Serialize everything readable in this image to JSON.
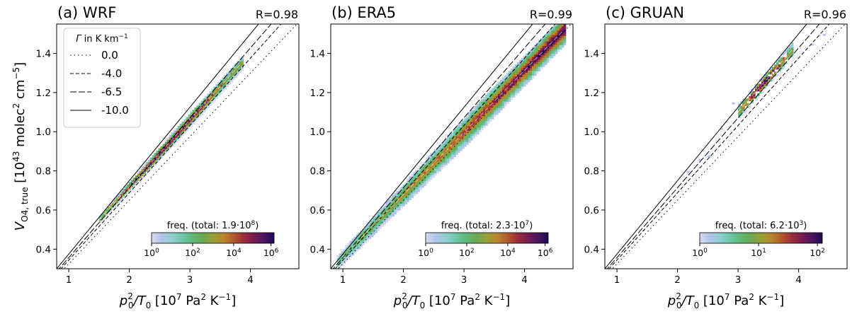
{
  "figure": {
    "ylabel_main": "V",
    "ylabel_sub": "O4, true",
    "ylabel_unit": "[10",
    "ylabel_unit_exp": "43",
    "ylabel_unit_rest": " molec",
    "ylabel_unit_exp2": "2",
    "ylabel_unit_rest2": " cm",
    "ylabel_unit_exp3": "−5",
    "ylabel_unit_end": "]",
    "xlabel_p": "p",
    "xlabel_p_sub": "0",
    "xlabel_p_sup": "2",
    "xlabel_slash": "/T",
    "xlabel_t_sub": "0",
    "xlabel_unit": " [10",
    "xlabel_unit_exp": "7",
    "xlabel_unit_rest": " Pa",
    "xlabel_unit_exp2": "2",
    "xlabel_unit_rest2": " K",
    "xlabel_unit_exp3": "−1",
    "xlabel_unit_end": "]"
  },
  "legend": {
    "title_gamma": "Γ",
    "title_rest": " in K km",
    "title_exp": "−1",
    "entries": [
      {
        "label": "0.0",
        "style": "dotted"
      },
      {
        "label": "-4.0",
        "style": "dashed"
      },
      {
        "label": "-6.5",
        "style": "longdash"
      },
      {
        "label": "-10.0",
        "style": "solid"
      }
    ]
  },
  "colorbar_palette": [
    "#d9d9f0",
    "#b0c4e8",
    "#8fd0d0",
    "#6cc7a8",
    "#5fb878",
    "#6aa84f",
    "#98a038",
    "#b8862e",
    "#b45a2a",
    "#9c2e3a",
    "#7a1a52",
    "#4b1560",
    "#1e0b52"
  ],
  "chart_data": [
    {
      "type": "heatmap",
      "title": "(a)  WRF",
      "annotation": "R=0.98",
      "xlim": [
        0.8,
        4.8
      ],
      "ylim": [
        0.3,
        1.55
      ],
      "xticks": [
        "1",
        "2",
        "3",
        "4"
      ],
      "yticks": [
        "0.4",
        "0.6",
        "0.8",
        "1.0",
        "1.2",
        "1.4"
      ],
      "density_band": {
        "x_range": [
          1.5,
          3.85
        ],
        "y_range": [
          0.55,
          1.35
        ]
      },
      "colorbar": {
        "label_prefix": "freq. (total: 1.9·10",
        "label_exp": "8",
        "label_suffix": ")",
        "ticks": [
          {
            "base": "10",
            "exp": "0"
          },
          {
            "base": "10",
            "exp": "2"
          },
          {
            "base": "10",
            "exp": "4"
          },
          {
            "base": "10",
            "exp": "6"
          }
        ]
      },
      "has_legend": true
    },
    {
      "type": "heatmap",
      "title": "(b)  ERA5",
      "annotation": "R=0.99",
      "xlim": [
        0.8,
        4.8
      ],
      "ylim": [
        0.3,
        1.55
      ],
      "xticks": [
        "1",
        "2",
        "3",
        "4"
      ],
      "yticks": [
        "0.4",
        "0.6",
        "0.8",
        "1.0",
        "1.2",
        "1.4"
      ],
      "density_band": {
        "x_range": [
          0.9,
          4.65
        ],
        "y_range": [
          0.33,
          1.52
        ]
      },
      "colorbar": {
        "label_prefix": "freq. (total: 2.3·10",
        "label_exp": "7",
        "label_suffix": ")",
        "ticks": [
          {
            "base": "10",
            "exp": "0"
          },
          {
            "base": "10",
            "exp": "2"
          },
          {
            "base": "10",
            "exp": "4"
          },
          {
            "base": "10",
            "exp": "6"
          }
        ]
      },
      "has_legend": false
    },
    {
      "type": "heatmap",
      "title": "(c)  GRUAN",
      "annotation": "R=0.96",
      "xlim": [
        0.8,
        4.8
      ],
      "ylim": [
        0.3,
        1.55
      ],
      "xticks": [
        "1",
        "2",
        "3",
        "4"
      ],
      "yticks": [
        "0.4",
        "0.6",
        "0.8",
        "1.0",
        "1.2",
        "1.4"
      ],
      "density_band": {
        "x_range": [
          3.0,
          3.9
        ],
        "y_range": [
          1.1,
          1.42
        ]
      },
      "colorbar": {
        "label_prefix": "freq. (total: 6.2·10",
        "label_exp": "3",
        "label_suffix": ")",
        "ticks": [
          {
            "base": "10",
            "exp": "0"
          },
          {
            "base": "10",
            "exp": "1"
          },
          {
            "base": "10",
            "exp": "2"
          }
        ]
      },
      "has_legend": false
    }
  ]
}
